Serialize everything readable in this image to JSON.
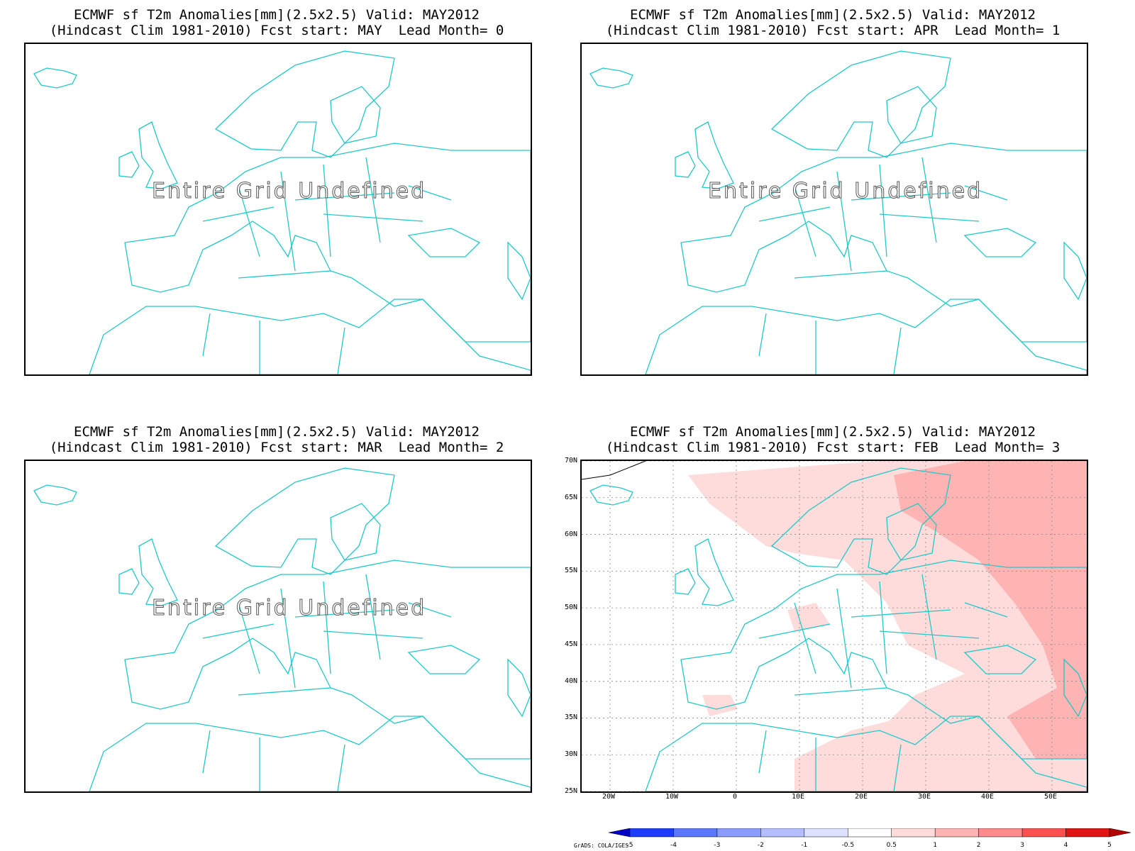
{
  "panels": [
    {
      "title_line1": "ECMWF sf T2m Anomalies[mm](2.5x2.5) Valid: MAY2012",
      "title_line2": "(Hindcast Clim 1981-2010) Fcst start: MAY  Lead Month= 0",
      "message": "Entire Grid Undefined"
    },
    {
      "title_line1": "ECMWF sf T2m Anomalies[mm](2.5x2.5) Valid: MAY2012",
      "title_line2": "(Hindcast Clim 1981-2010) Fcst start: APR  Lead Month= 1",
      "message": "Entire Grid Undefined"
    },
    {
      "title_line1": "ECMWF sf T2m Anomalies[mm](2.5x2.5) Valid: MAY2012",
      "title_line2": "(Hindcast Clim 1981-2010) Fcst start: MAR  Lead Month= 2",
      "message": "Entire Grid Undefined"
    },
    {
      "title_line1": "ECMWF sf T2m Anomalies[mm](2.5x2.5) Valid: MAY2012",
      "title_line2": "(Hindcast Clim 1981-2010) Fcst start: FEB  Lead Month= 3",
      "lat_labels": [
        "70N",
        "65N",
        "60N",
        "55N",
        "50N",
        "45N",
        "40N",
        "35N",
        "30N",
        "25N"
      ],
      "lon_labels": [
        "20W",
        "10W",
        "0",
        "10E",
        "20E",
        "30E",
        "40E",
        "50E"
      ]
    }
  ],
  "colorbar": {
    "credit": "GrADS: COLA/IGES",
    "tick_labels": [
      "-5",
      "-4",
      "-3",
      "-2",
      "-1",
      "-0.5",
      "0.5",
      "1",
      "2",
      "3",
      "4",
      "5"
    ],
    "colors": [
      "#0000c8",
      "#1e3cff",
      "#5a78ff",
      "#8c9bff",
      "#b4beff",
      "#dce1ff",
      "#ffffff",
      "#ffdcdc",
      "#ffb4b4",
      "#ff8c8c",
      "#ff5050",
      "#e11414",
      "#b40000"
    ]
  },
  "colors": {
    "coastline": "#20c8c8",
    "frame": "#000000",
    "gridline": "#888888"
  }
}
